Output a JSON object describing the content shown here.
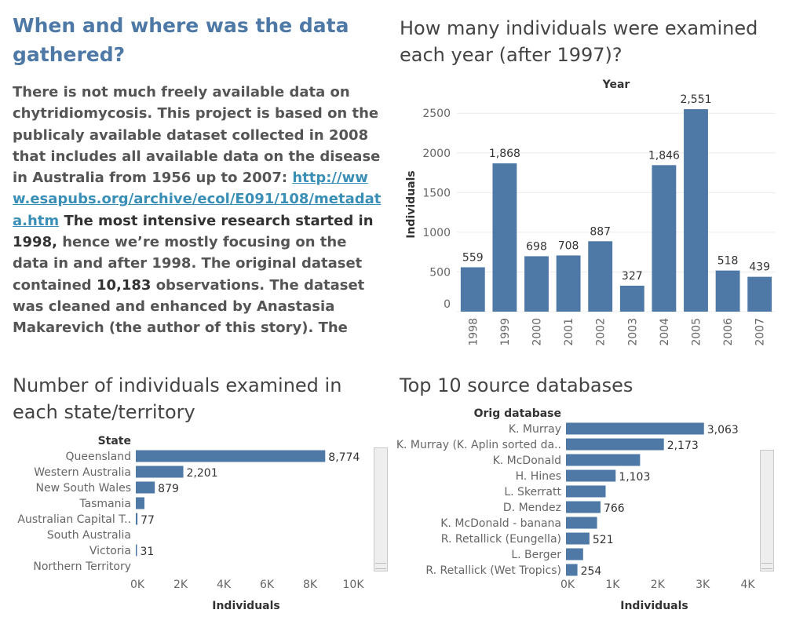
{
  "text_panel": {
    "heading": "When and where was the data gathered?",
    "p1": "There is not much freely available data on chytridiomycosis. This project is based on the publicaly available dataset collected in 2008 that includes all available data on the disease in Australia from 1956 up to 2007: ",
    "link": "http://www.esapubs.org/archive/ecol/E091/108/metadata.htm",
    "p2_strong": "The most intensive research started in 1998,",
    "p3": " hence we’re mostly focusing on the data in and after 1998. The original dataset contained ",
    "p3_strong": "10,183",
    "p4": " observations. The dataset was cleaned and enhanced by Anastasia Makarevich (the author of this story). The following variables have been ad"
  },
  "colors": {
    "bar": "#4e79a7",
    "heading": "#4e79a7",
    "link": "#3a8fb7"
  },
  "chart_data": [
    {
      "type": "bar",
      "title": "How many individuals were examined each year (after 1997)?",
      "xlabel": "Year",
      "ylabel": "Individuals",
      "categories": [
        "1998",
        "1999",
        "2000",
        "2001",
        "2002",
        "2003",
        "2004",
        "2005",
        "2006",
        "2007"
      ],
      "values": [
        559,
        1868,
        698,
        708,
        887,
        327,
        1846,
        2551,
        518,
        439
      ],
      "data_labels": [
        "559",
        "1,868",
        "698",
        "708",
        "887",
        "327",
        "1,846",
        "2,551",
        "518",
        "439"
      ],
      "yticks": [
        0,
        500,
        1000,
        1500,
        2000,
        2500
      ],
      "ytick_labels": [
        "0",
        "500",
        "1000",
        "1500",
        "2000",
        "2500"
      ],
      "ylim": [
        0,
        2700
      ],
      "grid": true
    },
    {
      "type": "bar",
      "orientation": "horizontal",
      "title": "Number of individuals examined in each state/territory",
      "category_header": "State",
      "xlabel": "Individuals",
      "categories": [
        "Queensland",
        "Western Australia",
        "New South Wales",
        "Tasmania",
        "Australian Capital T..",
        "South Australia",
        "Victoria",
        "Northern Territory"
      ],
      "values": [
        8774,
        2201,
        879,
        400,
        77,
        0,
        31,
        0
      ],
      "data_labels": [
        "8,774",
        "2,201",
        "879",
        "",
        "77",
        "",
        "31",
        ""
      ],
      "xticks": [
        0,
        2000,
        4000,
        6000,
        8000,
        10000
      ],
      "xtick_labels": [
        "0K",
        "2K",
        "4K",
        "6K",
        "8K",
        "10K"
      ],
      "xlim": [
        0,
        10800
      ]
    },
    {
      "type": "bar",
      "orientation": "horizontal",
      "title": "Top 10 source databases",
      "category_header": "Orig database",
      "xlabel": "Individuals",
      "categories": [
        "K. Murray",
        "K. Murray (K. Aplin sorted da..",
        "K. McDonald",
        "H. Hines",
        "L. Skerratt",
        "D. Mendez",
        "K. McDonald - banana",
        "R. Retallick (Eungella)",
        "L. Berger",
        "R. Retallick (Wet Tropics)"
      ],
      "values": [
        3063,
        2173,
        1645,
        1103,
        880,
        766,
        690,
        521,
        380,
        254
      ],
      "data_labels": [
        "3,063",
        "2,173",
        "",
        "1,103",
        "",
        "766",
        "",
        "521",
        "",
        "254"
      ],
      "xticks": [
        0,
        1000,
        2000,
        3000,
        4000
      ],
      "xtick_labels": [
        "0K",
        "1K",
        "2K",
        "3K",
        "4K"
      ],
      "xlim": [
        0,
        4200
      ]
    }
  ]
}
